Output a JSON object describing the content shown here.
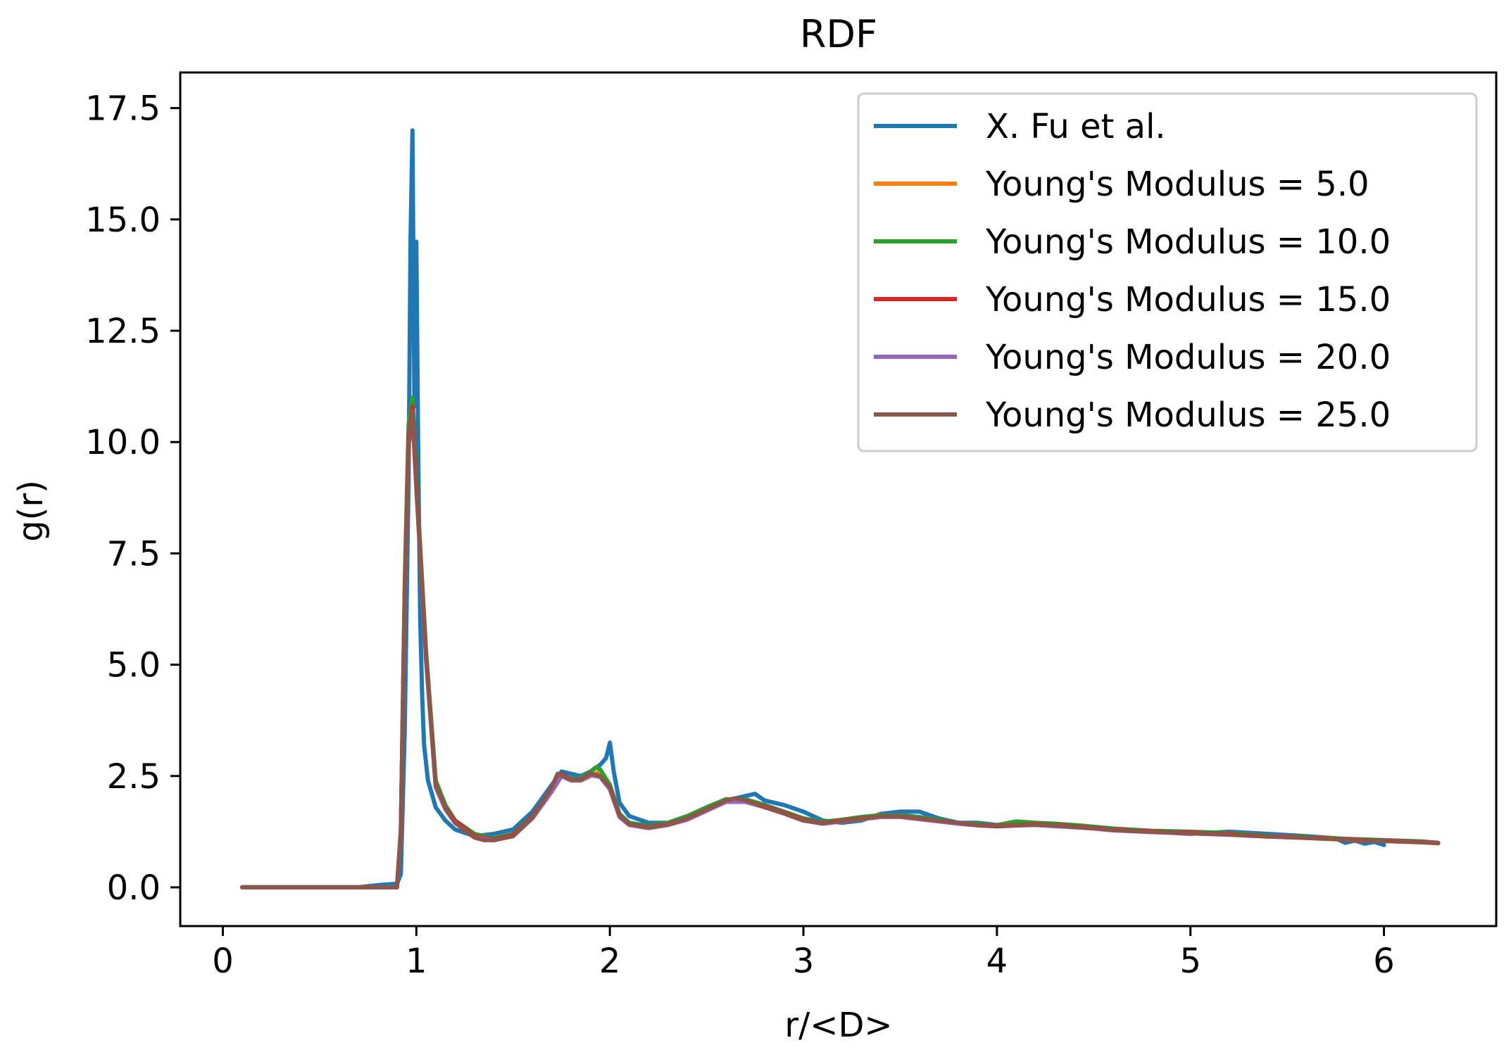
{
  "chart_data": {
    "type": "line",
    "title": "RDF",
    "xlabel": "r/<D>",
    "ylabel": "g(r)",
    "xlim": [
      -0.22,
      6.58
    ],
    "ylim": [
      -0.87,
      18.3
    ],
    "xticks": [
      0,
      1,
      2,
      3,
      4,
      5,
      6
    ],
    "xtick_labels": [
      "0",
      "1",
      "2",
      "3",
      "4",
      "5",
      "6"
    ],
    "yticks": [
      0,
      2.5,
      5,
      7.5,
      10,
      12.5,
      15,
      17.5
    ],
    "ytick_labels": [
      "0.0",
      "2.5",
      "5.0",
      "7.5",
      "10.0",
      "12.5",
      "15.0",
      "17.5"
    ],
    "grid": false,
    "legend_position": "top-right",
    "series": [
      {
        "name": "X. Fu et al.",
        "color": "#1f77b4",
        "x": [
          0.1,
          0.3,
          0.5,
          0.7,
          0.8,
          0.9,
          0.92,
          0.94,
          0.96,
          0.97,
          0.98,
          0.99,
          1.0,
          1.01,
          1.02,
          1.03,
          1.04,
          1.06,
          1.08,
          1.1,
          1.15,
          1.2,
          1.3,
          1.4,
          1.5,
          1.6,
          1.7,
          1.75,
          1.8,
          1.85,
          1.9,
          1.95,
          1.98,
          2.0,
          2.02,
          2.05,
          2.1,
          2.2,
          2.3,
          2.4,
          2.5,
          2.6,
          2.7,
          2.75,
          2.8,
          2.9,
          3.0,
          3.1,
          3.2,
          3.3,
          3.4,
          3.5,
          3.6,
          3.7,
          3.8,
          3.9,
          4.0,
          4.2,
          4.4,
          4.6,
          4.8,
          5.0,
          5.2,
          5.4,
          5.6,
          5.75,
          5.8,
          5.85,
          5.9,
          5.95,
          6.0
        ],
        "y": [
          0,
          0,
          0,
          0,
          0.05,
          0.08,
          0.3,
          3.5,
          9.2,
          14.6,
          17.0,
          10.8,
          14.5,
          9.5,
          6.0,
          4.3,
          3.2,
          2.4,
          2.1,
          1.8,
          1.5,
          1.3,
          1.15,
          1.2,
          1.3,
          1.7,
          2.3,
          2.6,
          2.55,
          2.5,
          2.6,
          2.75,
          2.9,
          3.25,
          2.6,
          1.9,
          1.6,
          1.45,
          1.45,
          1.6,
          1.75,
          1.95,
          2.05,
          2.1,
          1.95,
          1.85,
          1.7,
          1.5,
          1.45,
          1.5,
          1.65,
          1.7,
          1.7,
          1.55,
          1.45,
          1.45,
          1.4,
          1.4,
          1.35,
          1.3,
          1.25,
          1.2,
          1.25,
          1.2,
          1.15,
          1.1,
          1.0,
          1.05,
          0.98,
          1.02,
          0.95
        ]
      },
      {
        "name": "Young's Modulus = 5.0",
        "color": "#ff7f0e",
        "x": [
          0.1,
          0.5,
          0.9,
          0.92,
          0.94,
          0.96,
          0.98,
          1.0,
          1.05,
          1.1,
          1.15,
          1.2,
          1.3,
          1.4,
          1.5,
          1.6,
          1.65,
          1.7,
          1.75,
          1.8,
          1.85,
          1.9,
          1.95,
          2.0,
          2.05,
          2.1,
          2.2,
          2.3,
          2.4,
          2.5,
          2.6,
          2.7,
          2.8,
          2.9,
          3.0,
          3.1,
          3.2,
          3.3,
          3.4,
          3.5,
          3.6,
          3.7,
          3.8,
          3.9,
          4.0,
          4.1,
          4.2,
          4.3,
          4.4,
          4.5,
          4.6,
          4.8,
          5.0,
          5.2,
          5.4,
          5.6,
          5.8,
          6.0,
          6.2,
          6.28
        ],
        "y": [
          0,
          0,
          0,
          1.2,
          6.5,
          10.0,
          10.7,
          9.0,
          5.2,
          2.3,
          1.8,
          1.5,
          1.2,
          1.1,
          1.2,
          1.6,
          1.9,
          2.2,
          2.5,
          2.4,
          2.4,
          2.5,
          2.6,
          2.2,
          1.6,
          1.4,
          1.35,
          1.4,
          1.55,
          1.75,
          1.95,
          1.95,
          1.85,
          1.7,
          1.55,
          1.45,
          1.5,
          1.55,
          1.6,
          1.6,
          1.55,
          1.5,
          1.45,
          1.4,
          1.38,
          1.4,
          1.42,
          1.4,
          1.38,
          1.35,
          1.3,
          1.25,
          1.22,
          1.2,
          1.15,
          1.12,
          1.08,
          1.05,
          1.02,
          1.0
        ]
      },
      {
        "name": "Young's Modulus = 10.0",
        "color": "#2ca02c",
        "x": [
          0.1,
          0.5,
          0.9,
          0.92,
          0.94,
          0.96,
          0.98,
          1.0,
          1.05,
          1.1,
          1.15,
          1.2,
          1.3,
          1.4,
          1.5,
          1.6,
          1.65,
          1.7,
          1.75,
          1.8,
          1.85,
          1.9,
          1.93,
          1.95,
          2.0,
          2.05,
          2.1,
          2.2,
          2.3,
          2.4,
          2.5,
          2.6,
          2.7,
          2.8,
          2.9,
          3.0,
          3.1,
          3.2,
          3.3,
          3.4,
          3.5,
          3.6,
          3.7,
          3.8,
          3.9,
          4.0,
          4.1,
          4.2,
          4.3,
          4.4,
          4.5,
          4.6,
          4.8,
          5.0,
          5.2,
          5.4,
          5.6,
          5.8,
          6.0,
          6.2,
          6.28
        ],
        "y": [
          0,
          0,
          0,
          1.3,
          6.8,
          10.4,
          11.0,
          9.2,
          5.3,
          2.4,
          1.85,
          1.5,
          1.2,
          1.1,
          1.2,
          1.6,
          1.9,
          2.2,
          2.5,
          2.45,
          2.45,
          2.6,
          2.7,
          2.65,
          2.3,
          1.65,
          1.45,
          1.38,
          1.45,
          1.6,
          1.8,
          1.98,
          1.98,
          1.85,
          1.7,
          1.55,
          1.47,
          1.52,
          1.58,
          1.62,
          1.62,
          1.58,
          1.52,
          1.45,
          1.42,
          1.4,
          1.48,
          1.45,
          1.43,
          1.4,
          1.36,
          1.32,
          1.27,
          1.25,
          1.22,
          1.16,
          1.13,
          1.09,
          1.06,
          1.03,
          1.0
        ]
      },
      {
        "name": "Young's Modulus = 15.0",
        "color": "#d62728",
        "x": [
          0.1,
          0.5,
          0.9,
          0.92,
          0.94,
          0.96,
          0.98,
          1.0,
          1.05,
          1.1,
          1.15,
          1.2,
          1.3,
          1.4,
          1.5,
          1.6,
          1.65,
          1.7,
          1.75,
          1.8,
          1.85,
          1.9,
          1.95,
          2.0,
          2.05,
          2.1,
          2.2,
          2.3,
          2.4,
          2.5,
          2.6,
          2.7,
          2.8,
          2.9,
          3.0,
          3.1,
          3.2,
          3.3,
          3.4,
          3.5,
          3.6,
          3.7,
          3.8,
          3.9,
          4.0,
          4.1,
          4.2,
          4.3,
          4.4,
          4.5,
          4.6,
          4.8,
          5.0,
          5.2,
          5.4,
          5.6,
          5.8,
          6.0,
          6.2,
          6.28
        ],
        "y": [
          0,
          0,
          0,
          1.2,
          6.6,
          10.1,
          10.8,
          9.1,
          5.2,
          2.3,
          1.8,
          1.5,
          1.15,
          1.08,
          1.18,
          1.6,
          1.9,
          2.2,
          2.55,
          2.42,
          2.42,
          2.55,
          2.5,
          2.25,
          1.6,
          1.42,
          1.36,
          1.42,
          1.55,
          1.75,
          1.95,
          1.95,
          1.82,
          1.68,
          1.52,
          1.45,
          1.5,
          1.55,
          1.6,
          1.6,
          1.55,
          1.5,
          1.45,
          1.4,
          1.38,
          1.4,
          1.42,
          1.4,
          1.37,
          1.34,
          1.3,
          1.26,
          1.23,
          1.2,
          1.15,
          1.12,
          1.08,
          1.05,
          1.02,
          1.0
        ]
      },
      {
        "name": "Young's Modulus = 20.0",
        "color": "#9467bd",
        "x": [
          0.1,
          0.5,
          0.9,
          0.92,
          0.94,
          0.96,
          0.98,
          1.0,
          1.05,
          1.1,
          1.15,
          1.2,
          1.3,
          1.4,
          1.5,
          1.6,
          1.65,
          1.7,
          1.75,
          1.8,
          1.85,
          1.9,
          1.95,
          2.0,
          2.05,
          2.1,
          2.2,
          2.3,
          2.4,
          2.5,
          2.6,
          2.7,
          2.8,
          2.9,
          3.0,
          3.1,
          3.2,
          3.3,
          3.4,
          3.5,
          3.6,
          3.7,
          3.8,
          3.9,
          4.0,
          4.1,
          4.2,
          4.3,
          4.4,
          4.5,
          4.6,
          4.8,
          5.0,
          5.2,
          5.4,
          5.6,
          5.8,
          6.0,
          6.2,
          6.28
        ],
        "y": [
          0,
          0,
          0,
          1.1,
          6.4,
          9.9,
          10.6,
          9.0,
          5.1,
          2.25,
          1.75,
          1.45,
          1.12,
          1.06,
          1.15,
          1.55,
          1.85,
          2.15,
          2.5,
          2.4,
          2.4,
          2.52,
          2.48,
          2.2,
          1.58,
          1.4,
          1.33,
          1.4,
          1.52,
          1.72,
          1.92,
          1.92,
          1.8,
          1.66,
          1.5,
          1.43,
          1.48,
          1.53,
          1.58,
          1.58,
          1.53,
          1.48,
          1.43,
          1.39,
          1.37,
          1.39,
          1.4,
          1.38,
          1.35,
          1.32,
          1.28,
          1.24,
          1.21,
          1.18,
          1.14,
          1.11,
          1.07,
          1.04,
          1.01,
          0.99
        ]
      },
      {
        "name": "Young's Modulus = 25.0",
        "color": "#8c564b",
        "x": [
          0.1,
          0.5,
          0.9,
          0.92,
          0.94,
          0.96,
          0.98,
          1.0,
          1.05,
          1.1,
          1.15,
          1.2,
          1.3,
          1.35,
          1.4,
          1.5,
          1.6,
          1.65,
          1.7,
          1.73,
          1.8,
          1.85,
          1.9,
          1.95,
          2.0,
          2.05,
          2.1,
          2.2,
          2.3,
          2.4,
          2.5,
          2.6,
          2.65,
          2.7,
          2.8,
          2.9,
          3.0,
          3.1,
          3.2,
          3.3,
          3.4,
          3.5,
          3.6,
          3.7,
          3.8,
          3.9,
          4.0,
          4.1,
          4.2,
          4.3,
          4.4,
          4.5,
          4.6,
          4.8,
          5.0,
          5.2,
          5.4,
          5.6,
          5.8,
          6.0,
          6.2,
          6.28
        ],
        "y": [
          0,
          0,
          0,
          1.2,
          6.5,
          10.0,
          10.7,
          9.0,
          5.2,
          2.3,
          1.8,
          1.45,
          1.12,
          1.06,
          1.06,
          1.15,
          1.58,
          1.9,
          2.25,
          2.55,
          2.42,
          2.42,
          2.56,
          2.5,
          2.25,
          1.62,
          1.42,
          1.35,
          1.41,
          1.55,
          1.75,
          1.95,
          2.0,
          1.96,
          1.8,
          1.66,
          1.5,
          1.44,
          1.49,
          1.54,
          1.6,
          1.6,
          1.55,
          1.5,
          1.45,
          1.4,
          1.37,
          1.39,
          1.41,
          1.39,
          1.36,
          1.33,
          1.29,
          1.25,
          1.22,
          1.19,
          1.14,
          1.11,
          1.07,
          1.04,
          1.01,
          0.99
        ]
      }
    ]
  }
}
